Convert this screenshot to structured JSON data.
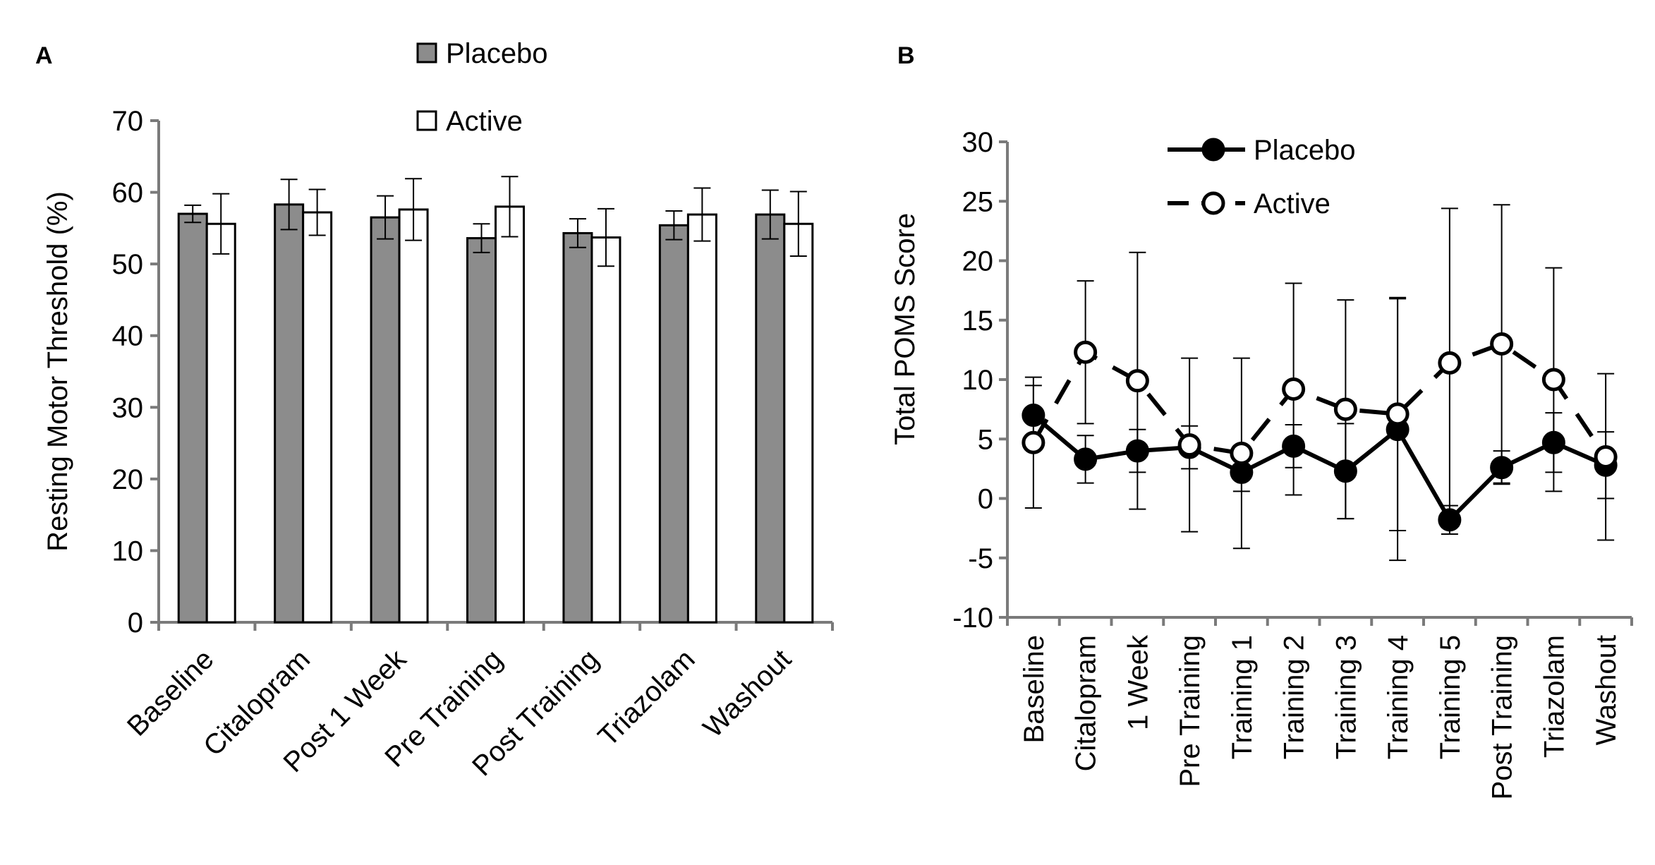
{
  "panels": {
    "a_label": "A",
    "b_label": "B"
  },
  "chart_data": [
    {
      "type": "bar",
      "panel": "A",
      "title": "",
      "xlabel": "",
      "ylabel": "Resting Motor Threshold (%)",
      "ylim": [
        0,
        70
      ],
      "yticks": [
        0,
        10,
        20,
        30,
        40,
        50,
        60,
        70
      ],
      "categories": [
        "Baseline",
        "Citalopram",
        "Post 1 Week",
        "Pre Training",
        "Post Training",
        "Triazolam",
        "Washout"
      ],
      "series": [
        {
          "name": "Placebo",
          "color": "#8c8c8c",
          "values": [
            57.0,
            58.3,
            56.5,
            53.6,
            54.3,
            55.4,
            56.9
          ],
          "errors": [
            1.2,
            3.5,
            3.0,
            2.0,
            2.0,
            2.0,
            3.4
          ]
        },
        {
          "name": "Active",
          "color": "#ffffff",
          "values": [
            55.6,
            57.2,
            57.6,
            58.0,
            53.7,
            56.9,
            55.6
          ],
          "errors": [
            4.2,
            3.2,
            4.3,
            4.2,
            4.0,
            3.7,
            4.5
          ]
        }
      ],
      "legend_position": "top"
    },
    {
      "type": "line",
      "panel": "B",
      "title": "",
      "xlabel": "",
      "ylabel": "Total POMS Score",
      "ylim": [
        -10,
        30
      ],
      "yticks": [
        -10,
        -5,
        0,
        5,
        10,
        15,
        20,
        25,
        30
      ],
      "categories": [
        "Baseline",
        "Citalopram",
        "1 Week",
        "Pre Training",
        "Training 1",
        "Training 2",
        "Training 3",
        "Training 4",
        "Training 5",
        "Post Training",
        "Triazolam",
        "Washout"
      ],
      "series": [
        {
          "name": "Placebo",
          "style": "solid",
          "marker": "filled-circle",
          "values": [
            7.0,
            3.3,
            4.0,
            4.3,
            2.2,
            4.4,
            2.3,
            5.8,
            -1.8,
            2.6,
            4.7,
            2.8
          ],
          "errors": [
            2.5,
            2.0,
            1.8,
            1.8,
            1.6,
            1.8,
            4.0,
            11.0,
            1.2,
            1.4,
            2.5,
            2.8
          ]
        },
        {
          "name": "Active",
          "style": "dashed",
          "marker": "open-circle",
          "values": [
            4.7,
            12.3,
            9.9,
            4.5,
            3.8,
            9.2,
            7.5,
            7.1,
            11.4,
            13.0,
            10.0,
            3.5
          ],
          "errors": [
            5.5,
            6.0,
            10.8,
            7.3,
            8.0,
            8.9,
            9.2,
            9.8,
            13.0,
            11.7,
            9.4,
            7.0
          ]
        }
      ],
      "legend_position": "top-left"
    }
  ]
}
